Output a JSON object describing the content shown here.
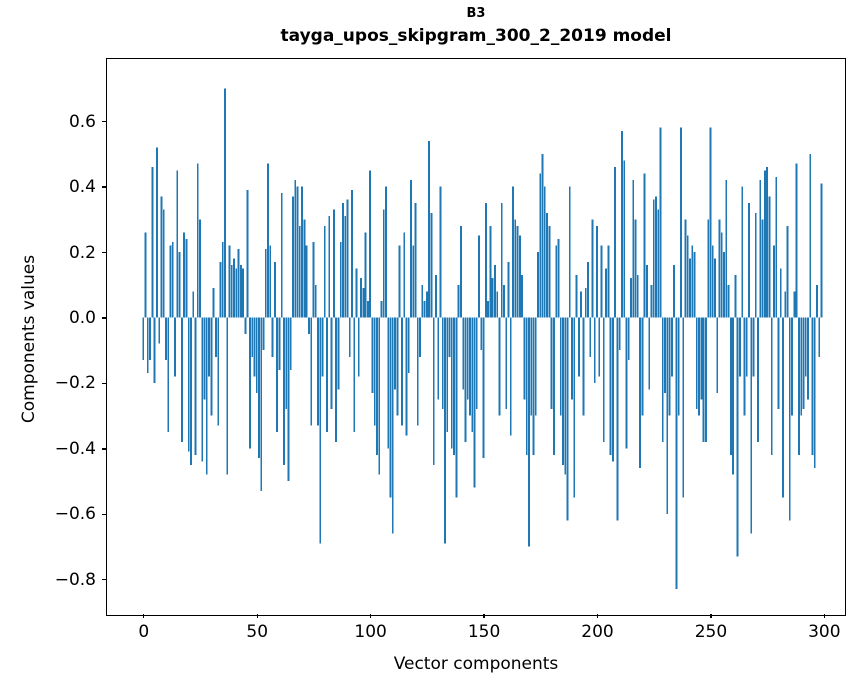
{
  "figure": {
    "suptitle": "B3",
    "title": "tayga_upos_skipgram_300_2_2019 model"
  },
  "chart_data": {
    "type": "bar",
    "suptitle": "B3",
    "title": "tayga_upos_skipgram_300_2_2019 model",
    "xlabel": "Vector components",
    "ylabel": "Components values",
    "bar_color": "#1f77b4",
    "grid": false,
    "legend": null,
    "xlim": [
      -16,
      308
    ],
    "ylim": [
      -0.9,
      0.79
    ],
    "xticks": [
      0,
      50,
      100,
      150,
      200,
      250,
      300
    ],
    "yticks": [
      0.6,
      0.4,
      0.2,
      0.0,
      -0.2,
      -0.4,
      -0.6,
      -0.8
    ],
    "ytick_labels": [
      "0.6",
      "0.4",
      "0.2",
      "0.0",
      "−0.2",
      "−0.4",
      "−0.6",
      "−0.8"
    ],
    "x_start": 0,
    "values": [
      -0.13,
      0.26,
      -0.17,
      -0.13,
      0.46,
      -0.2,
      0.52,
      -0.08,
      0.37,
      0.33,
      -0.13,
      -0.35,
      0.22,
      0.23,
      -0.18,
      0.45,
      0.2,
      -0.38,
      0.26,
      0.24,
      -0.41,
      -0.45,
      0.08,
      -0.42,
      0.47,
      0.3,
      -0.44,
      -0.25,
      -0.48,
      -0.18,
      -0.3,
      0.09,
      -0.12,
      -0.33,
      0.17,
      0.23,
      0.7,
      -0.48,
      0.22,
      0.16,
      0.18,
      0.15,
      0.21,
      0.16,
      0.15,
      -0.05,
      0.39,
      -0.4,
      -0.12,
      -0.18,
      -0.23,
      -0.43,
      -0.53,
      -0.1,
      0.21,
      0.47,
      0.22,
      -0.12,
      0.17,
      -0.35,
      -0.16,
      0.38,
      -0.45,
      -0.28,
      -0.5,
      -0.16,
      0.37,
      0.42,
      0.4,
      0.28,
      0.4,
      0.3,
      0.22,
      -0.05,
      -0.33,
      0.23,
      0.1,
      -0.33,
      -0.69,
      -0.18,
      0.28,
      -0.35,
      0.31,
      -0.28,
      0.33,
      -0.38,
      -0.22,
      0.23,
      0.35,
      0.31,
      0.36,
      -0.12,
      0.39,
      -0.35,
      0.15,
      -0.18,
      0.12,
      0.09,
      0.26,
      0.05,
      0.45,
      -0.23,
      -0.33,
      -0.42,
      -0.48,
      0.05,
      0.33,
      0.4,
      -0.4,
      -0.55,
      -0.66,
      -0.22,
      -0.3,
      0.22,
      -0.33,
      0.26,
      -0.36,
      -0.17,
      0.42,
      0.22,
      0.35,
      -0.33,
      -0.12,
      0.1,
      0.05,
      0.08,
      0.54,
      0.32,
      -0.45,
      0.13,
      -0.25,
      0.4,
      -0.28,
      -0.69,
      -0.35,
      -0.12,
      -0.4,
      -0.42,
      -0.55,
      0.1,
      0.28,
      -0.22,
      -0.38,
      -0.25,
      -0.3,
      -0.35,
      -0.52,
      -0.28,
      0.25,
      -0.1,
      -0.43,
      0.35,
      0.05,
      0.28,
      0.12,
      0.16,
      0.08,
      -0.3,
      0.35,
      0.1,
      -0.28,
      0.17,
      -0.36,
      0.4,
      0.3,
      0.28,
      0.25,
      0.13,
      -0.25,
      -0.42,
      -0.7,
      -0.3,
      -0.42,
      -0.3,
      0.2,
      0.44,
      0.5,
      0.4,
      0.32,
      0.28,
      -0.28,
      -0.42,
      0.22,
      0.24,
      -0.3,
      -0.45,
      -0.48,
      -0.62,
      0.4,
      -0.25,
      -0.55,
      0.13,
      -0.18,
      0.08,
      -0.3,
      0.09,
      0.17,
      -0.12,
      0.3,
      -0.2,
      0.28,
      -0.18,
      0.22,
      -0.38,
      0.15,
      0.22,
      -0.42,
      -0.44,
      0.46,
      -0.62,
      -0.1,
      0.57,
      0.48,
      -0.4,
      -0.13,
      0.12,
      0.42,
      0.3,
      0.13,
      -0.46,
      -0.3,
      0.44,
      0.16,
      -0.22,
      0.1,
      0.36,
      0.37,
      0.33,
      0.58,
      -0.38,
      -0.23,
      -0.6,
      -0.3,
      -0.18,
      0.16,
      -0.83,
      -0.3,
      0.58,
      -0.55,
      0.3,
      0.25,
      0.18,
      0.22,
      0.2,
      -0.28,
      -0.3,
      -0.25,
      -0.38,
      -0.38,
      0.3,
      0.58,
      0.22,
      0.18,
      -0.23,
      0.3,
      0.26,
      0.2,
      0.42,
      0.1,
      -0.42,
      -0.48,
      0.13,
      -0.73,
      -0.18,
      0.4,
      -0.3,
      -0.18,
      0.35,
      -0.66,
      -0.18,
      0.32,
      -0.38,
      0.42,
      0.3,
      0.45,
      0.46,
      0.37,
      -0.42,
      0.22,
      0.43,
      -0.28,
      0.15,
      -0.55,
      0.08,
      0.28,
      -0.62,
      -0.3,
      0.08,
      0.47,
      -0.42,
      -0.3,
      -0.28,
      -0.18,
      -0.25,
      0.5,
      -0.42,
      -0.46,
      0.1,
      -0.12,
      0.41
    ]
  }
}
